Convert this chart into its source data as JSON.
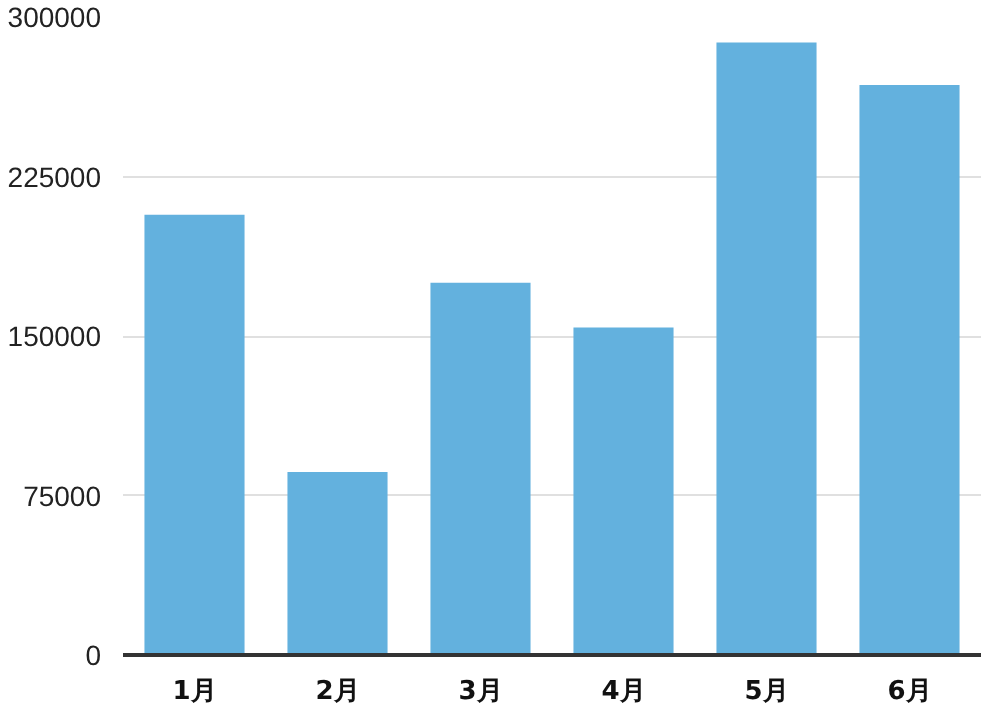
{
  "chart_data": {
    "type": "bar",
    "categories": [
      "1月",
      "2月",
      "3月",
      "4月",
      "5月",
      "6月"
    ],
    "values": [
      207000,
      86000,
      175000,
      154000,
      288000,
      268000
    ],
    "color": "#63b1de",
    "ylim": [
      0,
      300000
    ],
    "yticks": [
      0,
      75000,
      150000,
      225000,
      300000
    ],
    "grid": "y"
  }
}
